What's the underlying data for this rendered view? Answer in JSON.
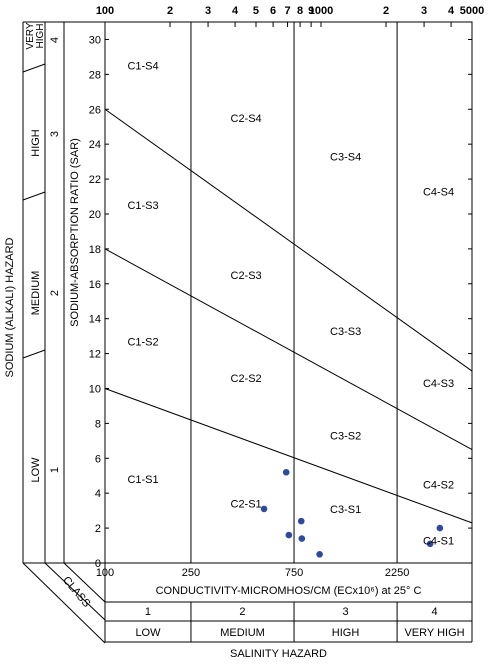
{
  "chart_data": {
    "type": "scatter",
    "title": "",
    "xlabel": "CONDUCTIVITY-MICROMHOS/CM (ECx10⁶) at 25° C",
    "ylabel": "SODIUM-ABSORPTION RATIO (SAR)",
    "x_scale": "log",
    "xlim": [
      100,
      5000
    ],
    "ylim": [
      0,
      31
    ],
    "top_ticks": [
      "100",
      "2",
      "3",
      "4",
      "5",
      "6",
      "7",
      "8",
      "9",
      "1000",
      "2",
      "3",
      "4",
      "5000"
    ],
    "top_tick_values": [
      100,
      200,
      300,
      400,
      500,
      600,
      700,
      800,
      900,
      1000,
      2000,
      3000,
      4000,
      5000
    ],
    "bottom_ticks": [
      "100",
      "250",
      "750",
      "2250"
    ],
    "bottom_tick_values": [
      100,
      250,
      750,
      2250
    ],
    "y_ticks": [
      0,
      2,
      4,
      6,
      8,
      10,
      12,
      14,
      16,
      18,
      20,
      22,
      24,
      26,
      28,
      30
    ],
    "salinity_boundaries": [
      250,
      750,
      2250
    ],
    "sodium_lines": [
      {
        "from": [
          100,
          10
        ],
        "to": [
          5000,
          2.3
        ]
      },
      {
        "from": [
          100,
          18
        ],
        "to": [
          5000,
          6.5
        ]
      },
      {
        "from": [
          100,
          26
        ],
        "to": [
          5000,
          11
        ]
      }
    ],
    "zones": [
      {
        "label": "C1-S4",
        "x": 150,
        "y": 28.5
      },
      {
        "label": "C2-S4",
        "x": 450,
        "y": 25.5
      },
      {
        "label": "C3-S4",
        "x": 1300,
        "y": 23.3
      },
      {
        "label": "C4-S4",
        "x": 3500,
        "y": 21.3
      },
      {
        "label": "C1-S3",
        "x": 150,
        "y": 20.5
      },
      {
        "label": "C2-S3",
        "x": 450,
        "y": 16.5
      },
      {
        "label": "C3-S3",
        "x": 1300,
        "y": 13.3
      },
      {
        "label": "C4-S3",
        "x": 3500,
        "y": 10.3
      },
      {
        "label": "C1-S2",
        "x": 150,
        "y": 12.7
      },
      {
        "label": "C2-S2",
        "x": 450,
        "y": 10.6
      },
      {
        "label": "C3-S2",
        "x": 1300,
        "y": 7.3
      },
      {
        "label": "C4-S2",
        "x": 3500,
        "y": 4.5
      },
      {
        "label": "C1-S1",
        "x": 150,
        "y": 4.8
      },
      {
        "label": "C2-S1",
        "x": 450,
        "y": 3.4
      },
      {
        "label": "C3-S1",
        "x": 1300,
        "y": 3.1
      },
      {
        "label": "C4-S1",
        "x": 3500,
        "y": 1.3
      }
    ],
    "points": [
      {
        "x": 690,
        "y": 5.2
      },
      {
        "x": 545,
        "y": 3.1
      },
      {
        "x": 710,
        "y": 1.6
      },
      {
        "x": 810,
        "y": 2.4
      },
      {
        "x": 815,
        "y": 1.4
      },
      {
        "x": 985,
        "y": 0.5
      },
      {
        "x": 3200,
        "y": 1.1
      },
      {
        "x": 3550,
        "y": 2.0
      }
    ],
    "left_label": "SODIUM (ALKALI) HAZARD",
    "sodium_classes": [
      "1",
      "2",
      "3",
      "4"
    ],
    "sodium_levels": [
      "LOW",
      "MEDIUM",
      "HIGH",
      "VERY HIGH"
    ],
    "class_label": "CLASS",
    "salinity_classes": [
      "1",
      "2",
      "3",
      "4"
    ],
    "salinity_levels": [
      "LOW",
      "MEDIUM",
      "HIGH",
      "VERY HIGH"
    ],
    "bottom_label": "SALINITY HAZARD",
    "colors": {
      "point": "#2e4a9c",
      "line": "#000000"
    }
  }
}
